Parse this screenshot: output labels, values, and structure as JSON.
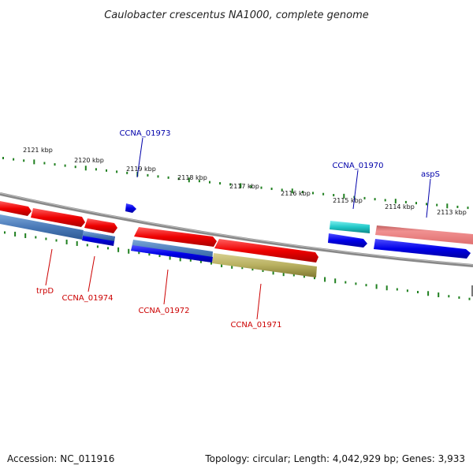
{
  "title": "Caulobacter crescentus NA1000, complete genome",
  "footer": {
    "accession": "Accession: NC_011916",
    "summary": "Topology: circular; Length: 4,042,929 bp; Genes: 3,933"
  },
  "colors": {
    "forward_cds": "#e00000",
    "reverse_cds": "#0000e0",
    "reverse_cds_faded": "#4a7ab8",
    "trna": "#20c8c8",
    "rrna": "#b8b060",
    "pseudo": "#e88080",
    "backbone": "#888888",
    "tick": "#208020",
    "label_forward": "#0000aa",
    "label_reverse": "#cc0000"
  },
  "chart_data": {
    "type": "genome-map",
    "scale_ticks": [
      "2121 kbp",
      "2120 kbp",
      "2119 kbp",
      "2118 kbp",
      "2117 kbp",
      "2116 kbp",
      "2115 kbp",
      "2114 kbp",
      "2113 kbp"
    ],
    "gene_labels": [
      {
        "name": "CCNA_01973",
        "strand": "+"
      },
      {
        "name": "CCNA_01970",
        "strand": "+"
      },
      {
        "name": "aspS",
        "strand": "+"
      },
      {
        "name": "trpD",
        "strand": "-"
      },
      {
        "name": "CCNA_01974",
        "strand": "-"
      },
      {
        "name": "CCNA_01972",
        "strand": "-"
      },
      {
        "name": "CCNA_01971",
        "strand": "-"
      }
    ]
  }
}
